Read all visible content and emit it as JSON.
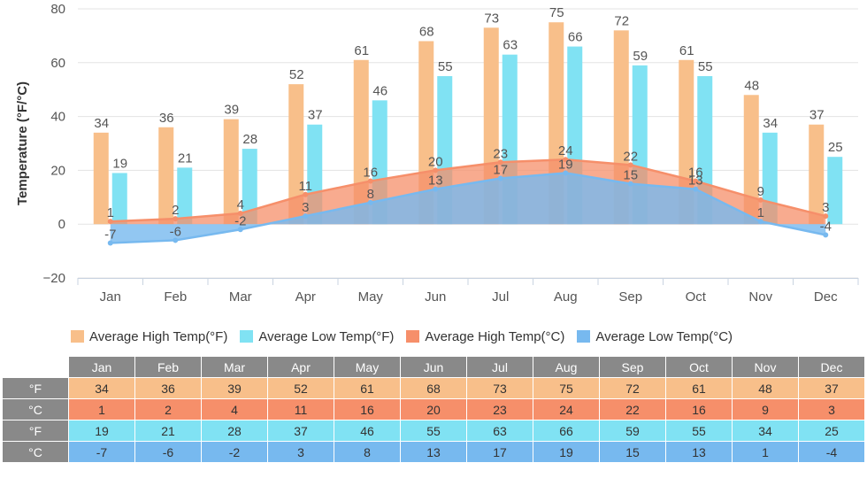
{
  "chart_data": {
    "type": "bar",
    "categories": [
      "Jan",
      "Feb",
      "Mar",
      "Apr",
      "May",
      "Jun",
      "Jul",
      "Aug",
      "Sep",
      "Oct",
      "Nov",
      "Dec"
    ],
    "ylabel": "Temperature (°F/°C)",
    "ylim": [
      -20,
      80
    ],
    "yticks": [
      -20,
      0,
      20,
      40,
      60,
      80
    ],
    "grid": true,
    "legend_position": "bottom",
    "series": [
      {
        "name": "Average High Temp(°F)",
        "type": "bar",
        "color": "#f8bf8a",
        "values": [
          34,
          36,
          39,
          52,
          61,
          68,
          73,
          75,
          72,
          61,
          48,
          37
        ]
      },
      {
        "name": "Average Low Temp(°F)",
        "type": "bar",
        "color": "#80e2f3",
        "values": [
          19,
          21,
          28,
          37,
          46,
          55,
          63,
          66,
          59,
          55,
          34,
          25
        ]
      },
      {
        "name": "Average High Temp(°C)",
        "type": "area",
        "color": "#f68f6a",
        "values": [
          1,
          2,
          4,
          11,
          16,
          20,
          23,
          24,
          22,
          16,
          9,
          3
        ]
      },
      {
        "name": "Average Low Temp(°C)",
        "type": "area",
        "color": "#77b9ef",
        "values": [
          -7,
          -6,
          -2,
          3,
          8,
          13,
          17,
          19,
          15,
          13,
          1,
          -4
        ]
      }
    ]
  },
  "table": {
    "months": [
      "Jan",
      "Feb",
      "Mar",
      "Apr",
      "May",
      "Jun",
      "Jul",
      "Aug",
      "Sep",
      "Oct",
      "Nov",
      "Dec"
    ],
    "rows": [
      {
        "label": "°F",
        "color": "#f8bf8a",
        "values": [
          "34",
          "36",
          "39",
          "52",
          "61",
          "68",
          "73",
          "75",
          "72",
          "61",
          "48",
          "37"
        ]
      },
      {
        "label": "°C",
        "color": "#f68f6a",
        "values": [
          "1",
          "2",
          "4",
          "11",
          "16",
          "20",
          "23",
          "24",
          "22",
          "16",
          "9",
          "3"
        ]
      },
      {
        "label": "°F",
        "color": "#80e2f3",
        "values": [
          "19",
          "21",
          "28",
          "37",
          "46",
          "55",
          "63",
          "66",
          "59",
          "55",
          "34",
          "25"
        ]
      },
      {
        "label": "°C",
        "color": "#77b9ef",
        "values": [
          "-7",
          "-6",
          "-2",
          "3",
          "8",
          "13",
          "17",
          "19",
          "15",
          "13",
          "1",
          "-4"
        ]
      }
    ]
  }
}
